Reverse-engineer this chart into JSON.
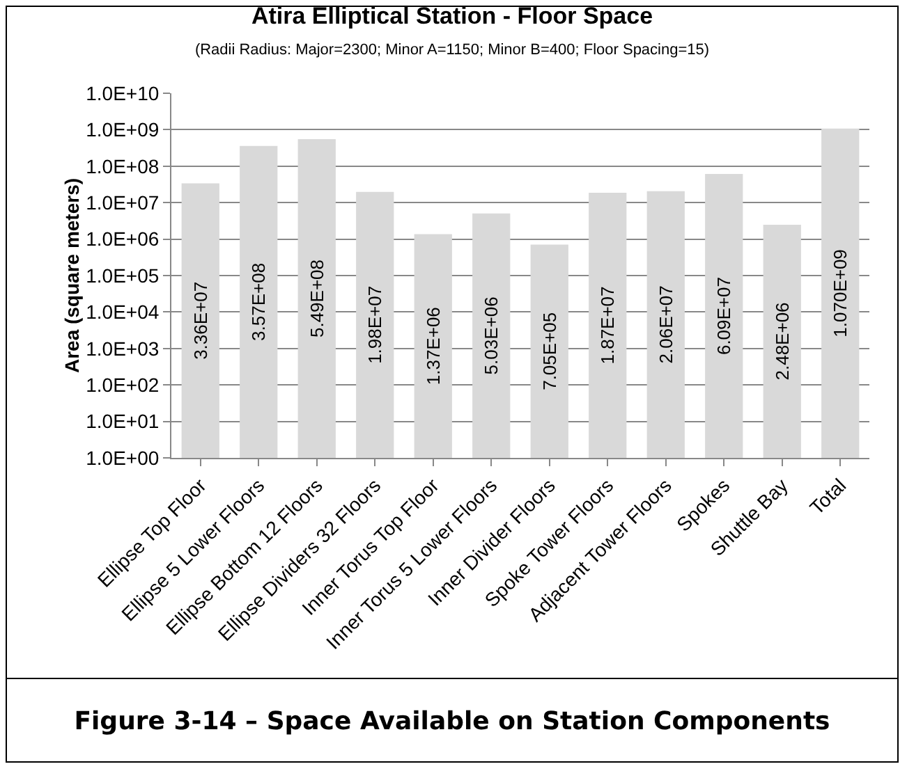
{
  "chart_data": {
    "type": "bar",
    "title": "Atira Elliptical Station - Floor Space",
    "subtitle": "(Radii Radius: Major=2300; Minor A=1150; Minor B=400; Floor Spacing=15)",
    "ylabel": "Area (square meters)",
    "categories": [
      "Ellipse Top Floor",
      "Ellipse 5 Lower Floors",
      "Ellipse Bottom 12 Floors",
      "Ellipse Dividers 32 Floors",
      "Inner Torus Top Floor",
      "Inner Torus 5 Lower Floors",
      "Inner Divider Floors",
      "Spoke Tower Floors",
      "Adjacent Tower Floors",
      "Spokes",
      "Shuttle Bay",
      "Total"
    ],
    "values": [
      33600000,
      357000000,
      549000000,
      19800000,
      1370000,
      5030000,
      705000,
      18700000,
      20600000,
      60900000,
      2480000,
      1070000000
    ],
    "value_labels": [
      "3.36E+07",
      "3.57E+08",
      "5.49E+08",
      "1.98E+07",
      "1.37E+06",
      "5.03E+06",
      "7.05E+05",
      "1.87E+07",
      "2.06E+07",
      "6.09E+07",
      "2.48E+06",
      "1.070E+09"
    ],
    "color": "#d9d9d9",
    "log": "y",
    "grid": "y",
    "ylim": [
      1,
      10000000000
    ],
    "yticks": [
      {
        "value": 1,
        "label": "1.0E+00"
      },
      {
        "value": 10,
        "label": "1.0E+01"
      },
      {
        "value": 100,
        "label": "1.0E+02"
      },
      {
        "value": 1000,
        "label": "1.0E+03"
      },
      {
        "value": 10000,
        "label": "1.0E+04"
      },
      {
        "value": 100000,
        "label": "1.0E+05"
      },
      {
        "value": 1000000,
        "label": "1.0E+06"
      },
      {
        "value": 10000000,
        "label": "1.0E+07"
      },
      {
        "value": 100000000,
        "label": "1.0E+08"
      },
      {
        "value": 1000000000,
        "label": "1.0E+09"
      },
      {
        "value": 10000000000,
        "label": "1.0E+10"
      }
    ],
    "annotations": [
      "Figure 3-14 – Space Available on Station Components"
    ]
  }
}
